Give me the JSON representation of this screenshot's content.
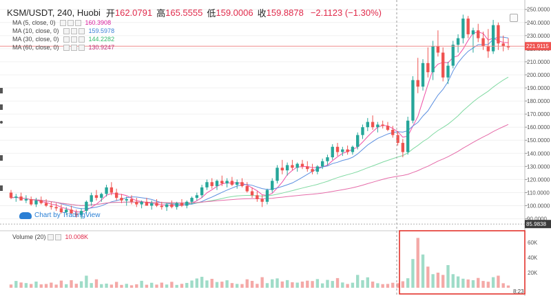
{
  "header": {
    "symbol": "KSM/USDT, 240, Huobi",
    "open_label": "开",
    "open": "162.0791",
    "high_label": "高",
    "high": "165.5555",
    "low_label": "低",
    "low": "159.0006",
    "close_label": "收",
    "close": "159.8878",
    "change": "−2.1123 (−1.30%)"
  },
  "indicators": [
    {
      "label": "MA (5, close, 0)",
      "value": "160.3908",
      "color": "#d81b9c"
    },
    {
      "label": "MA (10, close, 0)",
      "value": "159.5978",
      "color": "#3a7fd5"
    },
    {
      "label": "MA (30, close, 0)",
      "value": "144.2282",
      "color": "#32b96a"
    },
    {
      "label": "MA (60, close, 0)",
      "value": "130.9247",
      "color": "#c0307a"
    }
  ],
  "watermark": "Chart by TradingView",
  "volume_header": {
    "label": "Volume (20)",
    "value": "10.008K"
  },
  "time_label": "8:23",
  "colors": {
    "up": "#26a69a",
    "down": "#ef5350",
    "up_vol": "#9fdcc8",
    "down_vol": "#f4a9a7",
    "highlight": "#e0231c"
  },
  "chart_data": {
    "type": "candlestick",
    "price_axis": {
      "ticks": [
        90,
        100,
        110,
        120,
        130,
        140,
        150,
        160,
        170,
        180,
        190,
        200,
        210,
        220,
        230,
        240,
        250
      ],
      "tick_labels": [
        "90.0000",
        "100.0000",
        "110.0000",
        "120.0000",
        "130.0000",
        "140.0000",
        "150.0000",
        "160.0000",
        "170.0000",
        "180.0000",
        "190.0000",
        "200.0000",
        "210.0000",
        "220.0000",
        "230.0000",
        "240.0000",
        "250.0000"
      ],
      "current_price": 221.9115,
      "current_label": "221.9115",
      "low_marker": 85.9838,
      "low_label": "85.9838",
      "ylim": [
        84,
        253
      ]
    },
    "volume_axis": {
      "ticks": [
        20000,
        40000,
        60000
      ],
      "tick_labels": [
        "20K",
        "40K",
        "60K"
      ],
      "ylim": [
        0,
        70000
      ]
    },
    "candles": [
      [
        110,
        112,
        105,
        106
      ],
      [
        106,
        109,
        103,
        107
      ],
      [
        107,
        110,
        104,
        104
      ],
      [
        104,
        108,
        102,
        105
      ],
      [
        105,
        107,
        100,
        101
      ],
      [
        101,
        106,
        99,
        104
      ],
      [
        104,
        107,
        101,
        102
      ],
      [
        102,
        105,
        99,
        100
      ],
      [
        100,
        103,
        97,
        99
      ],
      [
        99,
        102,
        96,
        98
      ],
      [
        98,
        101,
        94,
        95
      ],
      [
        95,
        99,
        93,
        97
      ],
      [
        97,
        100,
        94,
        94
      ],
      [
        94,
        97,
        91,
        93
      ],
      [
        93,
        98,
        90,
        96
      ],
      [
        96,
        104,
        94,
        103
      ],
      [
        103,
        110,
        100,
        108
      ],
      [
        108,
        112,
        104,
        106
      ],
      [
        106,
        110,
        103,
        109
      ],
      [
        109,
        116,
        107,
        114
      ],
      [
        114,
        118,
        108,
        110
      ],
      [
        110,
        113,
        104,
        106
      ],
      [
        106,
        109,
        102,
        104
      ],
      [
        104,
        107,
        100,
        105
      ],
      [
        105,
        108,
        101,
        103
      ],
      [
        103,
        106,
        99,
        101
      ],
      [
        101,
        104,
        98,
        103
      ],
      [
        103,
        106,
        100,
        100
      ],
      [
        100,
        104,
        97,
        102
      ],
      [
        102,
        105,
        99,
        100
      ],
      [
        100,
        103,
        97,
        99
      ],
      [
        99,
        102,
        96,
        101
      ],
      [
        101,
        104,
        98,
        99
      ],
      [
        99,
        103,
        97,
        102
      ],
      [
        102,
        105,
        99,
        100
      ],
      [
        100,
        104,
        98,
        103
      ],
      [
        103,
        107,
        101,
        106
      ],
      [
        106,
        110,
        104,
        108
      ],
      [
        108,
        116,
        106,
        114
      ],
      [
        114,
        120,
        112,
        118
      ],
      [
        118,
        121,
        113,
        115
      ],
      [
        115,
        120,
        112,
        119
      ],
      [
        119,
        123,
        115,
        117
      ],
      [
        117,
        121,
        114,
        119
      ],
      [
        119,
        122,
        115,
        116
      ],
      [
        116,
        120,
        113,
        118
      ],
      [
        118,
        121,
        114,
        115
      ],
      [
        115,
        118,
        110,
        111
      ],
      [
        111,
        114,
        106,
        108
      ],
      [
        108,
        111,
        103,
        105
      ],
      [
        105,
        108,
        99,
        103
      ],
      [
        103,
        113,
        101,
        112
      ],
      [
        112,
        121,
        110,
        119
      ],
      [
        119,
        131,
        117,
        129
      ],
      [
        129,
        135,
        124,
        127
      ],
      [
        127,
        133,
        123,
        131
      ],
      [
        131,
        135,
        127,
        129
      ],
      [
        129,
        133,
        126,
        132
      ],
      [
        132,
        135,
        128,
        130
      ],
      [
        130,
        134,
        126,
        128
      ],
      [
        128,
        132,
        124,
        126
      ],
      [
        126,
        131,
        124,
        130
      ],
      [
        130,
        136,
        128,
        134
      ],
      [
        134,
        139,
        131,
        137
      ],
      [
        137,
        147,
        135,
        145
      ],
      [
        145,
        148,
        138,
        141
      ],
      [
        141,
        145,
        138,
        143
      ],
      [
        143,
        146,
        139,
        141
      ],
      [
        141,
        146,
        139,
        145
      ],
      [
        145,
        156,
        143,
        154
      ],
      [
        154,
        162,
        151,
        160
      ],
      [
        160,
        167,
        157,
        164
      ],
      [
        164,
        169,
        158,
        160
      ],
      [
        160,
        164,
        156,
        162
      ],
      [
        162,
        165,
        159,
        161
      ],
      [
        161,
        164,
        157,
        158
      ],
      [
        158,
        161,
        152,
        154
      ],
      [
        154,
        157,
        146,
        148
      ],
      [
        148,
        151,
        137,
        141
      ],
      [
        141,
        168,
        139,
        165
      ],
      [
        165,
        199,
        163,
        196
      ],
      [
        196,
        213,
        186,
        191
      ],
      [
        191,
        212,
        188,
        209
      ],
      [
        209,
        221,
        198,
        202
      ],
      [
        202,
        226,
        196,
        222
      ],
      [
        222,
        234,
        214,
        217
      ],
      [
        217,
        221,
        195,
        198
      ],
      [
        198,
        210,
        193,
        207
      ],
      [
        207,
        226,
        205,
        223
      ],
      [
        223,
        231,
        217,
        228
      ],
      [
        228,
        246,
        224,
        243
      ],
      [
        243,
        245,
        228,
        231
      ],
      [
        231,
        236,
        217,
        234
      ],
      [
        234,
        239,
        225,
        228
      ],
      [
        228,
        233,
        219,
        222
      ],
      [
        222,
        235,
        213,
        218
      ],
      [
        218,
        242,
        216,
        238
      ],
      [
        238,
        240,
        219,
        224
      ],
      [
        224,
        230,
        218,
        222
      ],
      [
        222,
        228,
        219,
        221
      ]
    ],
    "volume": [
      4300,
      9000,
      7000,
      6200,
      5000,
      8200,
      4500,
      5000,
      6800,
      4200,
      9500,
      4700,
      10000,
      5300,
      8600,
      16000,
      6200,
      11200,
      4800,
      5500,
      4200,
      7800,
      3800,
      5200,
      3300,
      4600,
      9200,
      4000,
      6600,
      4200,
      6800,
      4300,
      7900,
      3800,
      5200,
      6400,
      9600,
      12300,
      14500,
      9700,
      11800,
      7600,
      8100,
      9900,
      6200,
      5100,
      4900,
      11200,
      9100,
      5200,
      14000,
      6100,
      11200,
      12400,
      8300,
      10100,
      7300,
      6800,
      8200,
      9400,
      8900,
      11500,
      5800,
      10400,
      9000,
      12800,
      7000,
      5000,
      6700,
      17000,
      10000,
      13800,
      8200,
      6000,
      4800,
      5100,
      6600,
      6000,
      8600,
      12600,
      38000,
      66000,
      44000,
      28000,
      18000,
      20000,
      17000,
      30000,
      18000,
      15000,
      12000,
      11000,
      10000,
      13000,
      9000,
      8000,
      14000,
      16000,
      6000,
      3000
    ],
    "series": [
      {
        "name": "MA (5, close, 0)"
      },
      {
        "name": "MA (10, close, 0)"
      },
      {
        "name": "MA (30, close, 0)"
      },
      {
        "name": "MA (60, close, 0)"
      }
    ]
  }
}
